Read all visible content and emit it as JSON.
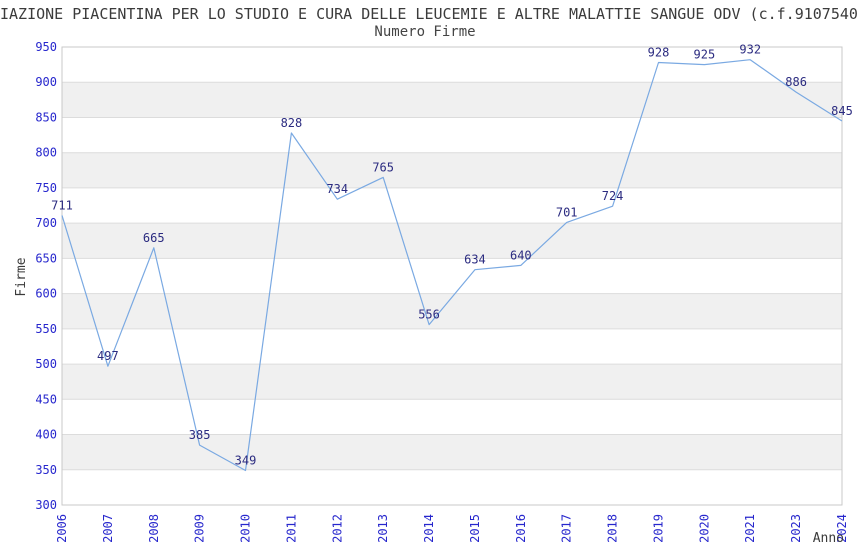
{
  "header": {
    "title": "IAZIONE PIACENTINA PER LO STUDIO E CURA DELLE LEUCEMIE E ALTRE MALATTIE SANGUE ODV (c.f.9107540",
    "subtitle": "Numero Firme"
  },
  "chart_data": {
    "type": "line",
    "title": "Numero Firme",
    "xlabel": "Anno",
    "ylabel": "Firme",
    "categories": [
      "2006",
      "2007",
      "2008",
      "2009",
      "2010",
      "2011",
      "2012",
      "2013",
      "2014",
      "2015",
      "2016",
      "2017",
      "2018",
      "2019",
      "2020",
      "2021",
      "2023",
      "2024"
    ],
    "values": [
      711,
      497,
      665,
      385,
      349,
      828,
      734,
      765,
      556,
      634,
      640,
      701,
      724,
      928,
      925,
      932,
      886,
      845
    ],
    "ylim": [
      300,
      950
    ],
    "ytick_step": 50,
    "grid": true,
    "legend_position": "none",
    "band_fill_alternating": true,
    "colors": {
      "line": "#7aa9e2",
      "tick_label": "#2727cd",
      "data_label": "#2b2b80",
      "axis_title": "#3a3a3a",
      "band_gray": "#f0f0f0",
      "band_white": "#ffffff",
      "gridline": "#dcdcdc",
      "plot_border": "#c9c9c9",
      "background": "#ffffff"
    }
  }
}
